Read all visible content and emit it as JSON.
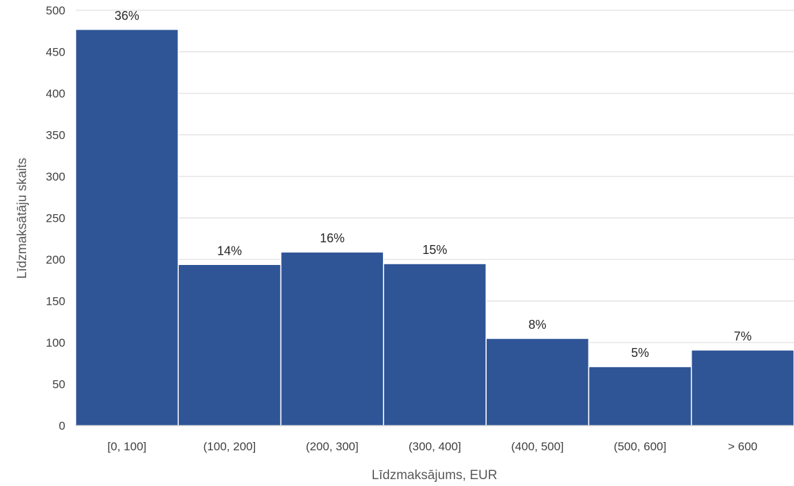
{
  "chart_data": {
    "type": "bar",
    "title": "",
    "xlabel": "Līdzmaksājums, EUR",
    "ylabel": "Līdzmaksātāju skaits",
    "categories": [
      "[0, 100]",
      "(100, 200]",
      "(200, 300]",
      "(300, 400]",
      "(400, 500]",
      "(500, 600]",
      "> 600"
    ],
    "values": [
      477,
      194,
      209,
      195,
      105,
      71,
      91
    ],
    "data_labels": [
      "36%",
      "14%",
      "16%",
      "15%",
      "8%",
      "5%",
      "7%"
    ],
    "ylim": [
      0,
      500
    ],
    "yticks": [
      0,
      50,
      100,
      150,
      200,
      250,
      300,
      350,
      400,
      450,
      500
    ],
    "grid": true,
    "legend": "none",
    "colors": {
      "bar": "#2f5597",
      "grid": "#d9d9d9",
      "axis": "#bfbfbf"
    }
  }
}
